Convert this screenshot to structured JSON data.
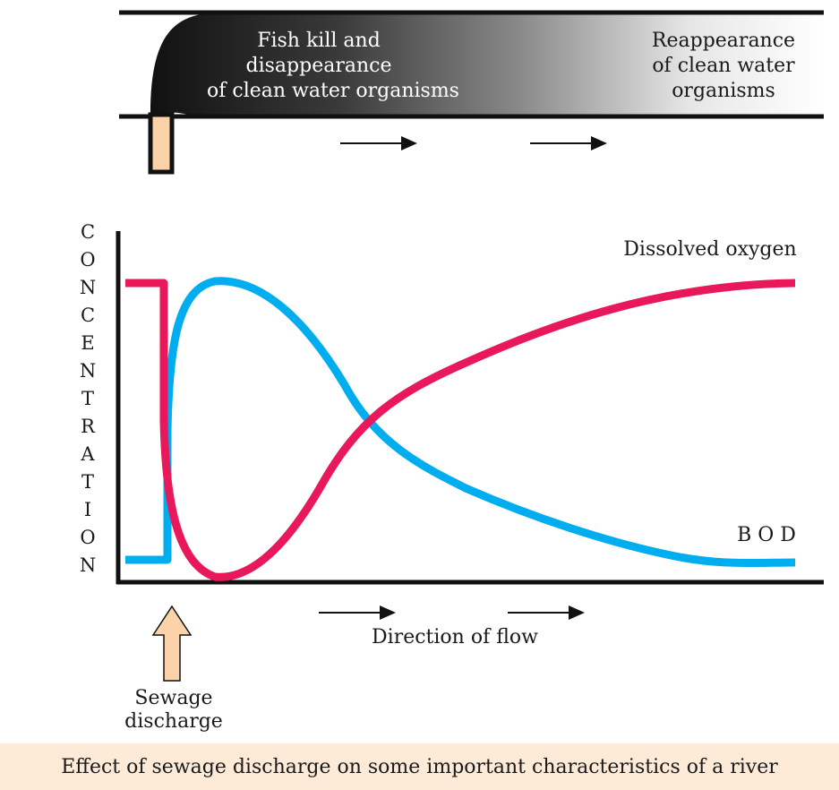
{
  "river": {
    "upstream_text": [
      "Fish kill and",
      "disappearance",
      "of clean water organisms"
    ],
    "downstream_text": [
      "Reappearance",
      "of clean water",
      "organisms"
    ]
  },
  "graph": {
    "y_axis_letters": [
      "C",
      "O",
      "N",
      "C",
      "E",
      "N",
      "T",
      "R",
      "A",
      "T",
      "I",
      "O",
      "N"
    ],
    "series": [
      {
        "name": "Dissolved oxygen",
        "color": "#e8185a"
      },
      {
        "name": "B O D",
        "color": "#00aeef"
      }
    ],
    "flow_label": "Direction of flow",
    "discharge_label": [
      "Sewage",
      "discharge"
    ]
  },
  "caption": "Effect of sewage discharge on some important characteristics of a river"
}
